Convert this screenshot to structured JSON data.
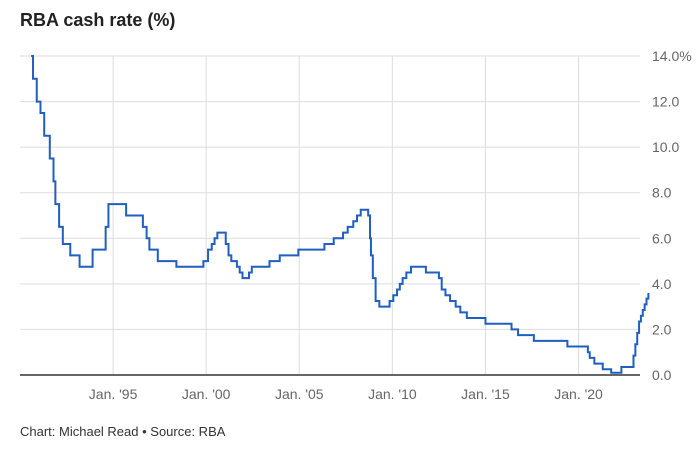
{
  "title": "RBA cash rate (%)",
  "footer": "Chart: Michael Read • Source: RBA",
  "colors": {
    "line": "#1f5fbf",
    "grid": "#dddddd",
    "axis": "#333333",
    "label": "#666666"
  },
  "chart_data": {
    "type": "line",
    "title": "RBA cash rate (%)",
    "xlabel": "",
    "ylabel": "",
    "xlim": [
      1990,
      2023.3
    ],
    "ylim": [
      0,
      14
    ],
    "grid": true,
    "y_axis_side": "right",
    "x_ticks": [
      {
        "x": 1995,
        "label": "Jan. '95"
      },
      {
        "x": 2000,
        "label": "Jan. '00"
      },
      {
        "x": 2005,
        "label": "Jan. '05"
      },
      {
        "x": 2010,
        "label": "Jan. '10"
      },
      {
        "x": 2015,
        "label": "Jan. '15"
      },
      {
        "x": 2020,
        "label": "Jan. '20"
      }
    ],
    "y_ticks": [
      {
        "y": 0,
        "label": "0.0"
      },
      {
        "y": 2,
        "label": "2.0"
      },
      {
        "y": 4,
        "label": "4.0"
      },
      {
        "y": 6,
        "label": "6.0"
      },
      {
        "y": 8,
        "label": "8.0"
      },
      {
        "y": 10,
        "label": "10.0"
      },
      {
        "y": 12,
        "label": "12.0"
      },
      {
        "y": 14,
        "label": "14.0%"
      }
    ],
    "series": [
      {
        "step": true,
        "points": [
          [
            1990.6,
            14.0
          ],
          [
            1990.7,
            13.0
          ],
          [
            1990.9,
            12.0
          ],
          [
            1991.1,
            11.5
          ],
          [
            1991.3,
            10.5
          ],
          [
            1991.6,
            9.5
          ],
          [
            1991.8,
            8.5
          ],
          [
            1991.9,
            7.5
          ],
          [
            1992.1,
            6.5
          ],
          [
            1992.3,
            5.75
          ],
          [
            1992.7,
            5.25
          ],
          [
            1993.2,
            4.75
          ],
          [
            1993.9,
            5.5
          ],
          [
            1994.6,
            6.5
          ],
          [
            1994.75,
            7.5
          ],
          [
            1995.7,
            7.0
          ],
          [
            1996.6,
            6.5
          ],
          [
            1996.8,
            6.0
          ],
          [
            1996.95,
            5.5
          ],
          [
            1997.4,
            5.0
          ],
          [
            1997.6,
            5.0
          ],
          [
            1998.0,
            5.0
          ],
          [
            1998.4,
            4.75
          ],
          [
            1999.5,
            4.75
          ],
          [
            1999.85,
            5.0
          ],
          [
            2000.1,
            5.5
          ],
          [
            2000.3,
            5.75
          ],
          [
            2000.45,
            6.0
          ],
          [
            2000.6,
            6.25
          ],
          [
            2001.05,
            5.75
          ],
          [
            2001.2,
            5.25
          ],
          [
            2001.35,
            5.0
          ],
          [
            2001.65,
            4.75
          ],
          [
            2001.8,
            4.5
          ],
          [
            2001.95,
            4.25
          ],
          [
            2002.3,
            4.5
          ],
          [
            2002.45,
            4.75
          ],
          [
            2003.1,
            4.75
          ],
          [
            2003.4,
            5.0
          ],
          [
            2003.85,
            5.0
          ],
          [
            2003.95,
            5.25
          ],
          [
            2004.0,
            5.25
          ],
          [
            2004.6,
            5.25
          ],
          [
            2004.95,
            5.5
          ],
          [
            2006.0,
            5.5
          ],
          [
            2006.35,
            5.75
          ],
          [
            2006.85,
            6.0
          ],
          [
            2007.35,
            6.25
          ],
          [
            2007.6,
            6.5
          ],
          [
            2007.9,
            6.75
          ],
          [
            2008.1,
            7.0
          ],
          [
            2008.3,
            7.25
          ],
          [
            2008.7,
            7.0
          ],
          [
            2008.8,
            6.0
          ],
          [
            2008.85,
            5.25
          ],
          [
            2008.95,
            4.25
          ],
          [
            2009.1,
            3.25
          ],
          [
            2009.3,
            3.0
          ],
          [
            2009.85,
            3.25
          ],
          [
            2010.05,
            3.5
          ],
          [
            2010.25,
            3.75
          ],
          [
            2010.4,
            4.0
          ],
          [
            2010.55,
            4.25
          ],
          [
            2010.75,
            4.5
          ],
          [
            2011.0,
            4.75
          ],
          [
            2011.8,
            4.5
          ],
          [
            2012.5,
            4.25
          ],
          [
            2012.65,
            3.75
          ],
          [
            2012.85,
            3.5
          ],
          [
            2013.1,
            3.25
          ],
          [
            2013.4,
            3.0
          ],
          [
            2013.65,
            2.75
          ],
          [
            2014.0,
            2.5
          ],
          [
            2015.0,
            2.25
          ],
          [
            2015.5,
            2.25
          ],
          [
            2016.4,
            2.0
          ],
          [
            2016.75,
            1.75
          ],
          [
            2017.0,
            1.75
          ],
          [
            2017.6,
            1.5
          ],
          [
            2019.4,
            1.25
          ],
          [
            2020.5,
            1.0
          ],
          [
            2020.6,
            0.75
          ],
          [
            2020.85,
            0.5
          ],
          [
            2020.9,
            0.5
          ],
          [
            2021.3,
            0.25
          ],
          [
            2021.75,
            0.1
          ],
          [
            2021.9,
            0.1
          ],
          [
            2022.3,
            0.35
          ],
          [
            2022.4,
            0.35
          ],
          [
            2022.95,
            0.85
          ],
          [
            2023.05,
            1.35
          ],
          [
            2023.15,
            1.85
          ],
          [
            2023.25,
            2.35
          ],
          [
            2023.35,
            2.6
          ],
          [
            2023.45,
            2.85
          ],
          [
            2023.55,
            3.1
          ],
          [
            2023.65,
            3.35
          ],
          [
            2023.75,
            3.6
          ]
        ]
      }
    ]
  }
}
